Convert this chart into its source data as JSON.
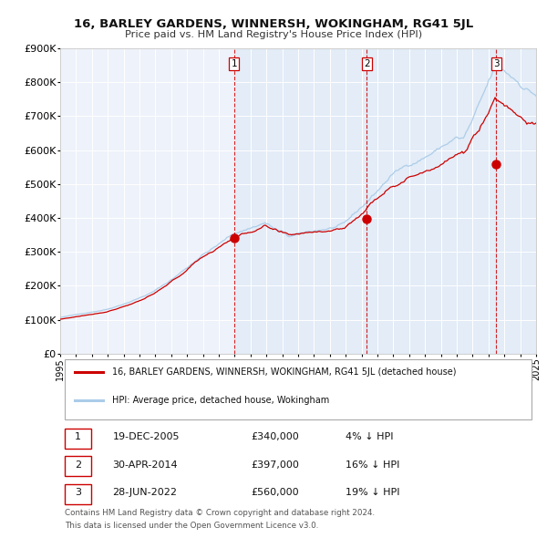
{
  "title": "16, BARLEY GARDENS, WINNERSH, WOKINGHAM, RG41 5JL",
  "subtitle": "Price paid vs. HM Land Registry's House Price Index (HPI)",
  "legend_label_red": "16, BARLEY GARDENS, WINNERSH, WOKINGHAM, RG41 5JL (detached house)",
  "legend_label_blue": "HPI: Average price, detached house, Wokingham",
  "footnote1": "Contains HM Land Registry data © Crown copyright and database right 2024.",
  "footnote2": "This data is licensed under the Open Government Licence v3.0.",
  "sales": [
    {
      "num": 1,
      "date": "19-DEC-2005",
      "price": "£340,000",
      "pct": "4% ↓ HPI",
      "year": 2005.97
    },
    {
      "num": 2,
      "date": "30-APR-2014",
      "price": "£397,000",
      "pct": "16% ↓ HPI",
      "year": 2014.33
    },
    {
      "num": 3,
      "date": "28-JUN-2022",
      "price": "£560,000",
      "pct": "19% ↓ HPI",
      "year": 2022.49
    }
  ],
  "sale_values": [
    340000,
    397000,
    560000
  ],
  "hpi_color": "#aacce8",
  "red_color": "#cc0000",
  "dashed_color": "#cc0000",
  "background_plot": "#eef2fa",
  "background_fig": "#ffffff",
  "grid_color": "#ffffff",
  "ylim": [
    0,
    900000
  ],
  "xlim_start": 1995,
  "xlim_end": 2025,
  "yticks": [
    0,
    100000,
    200000,
    300000,
    400000,
    500000,
    600000,
    700000,
    800000,
    900000
  ],
  "ytick_labels": [
    "£0",
    "£100K",
    "£200K",
    "£300K",
    "£400K",
    "£500K",
    "£600K",
    "£700K",
    "£800K",
    "£900K"
  ],
  "xticks": [
    1995,
    1996,
    1997,
    1998,
    1999,
    2000,
    2001,
    2002,
    2003,
    2004,
    2005,
    2006,
    2007,
    2008,
    2009,
    2010,
    2011,
    2012,
    2013,
    2014,
    2015,
    2016,
    2017,
    2018,
    2019,
    2020,
    2021,
    2022,
    2023,
    2024,
    2025
  ]
}
